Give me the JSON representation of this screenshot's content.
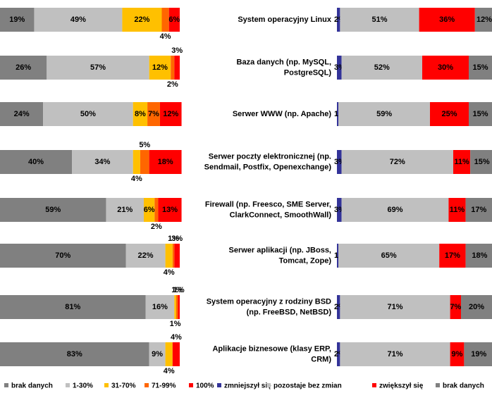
{
  "chart_data": [
    {
      "type": "stacked-bar",
      "series": [
        {
          "name": "brak danych",
          "color": "#808080",
          "values": [
            19,
            26,
            24,
            40,
            59,
            70,
            81,
            83
          ],
          "value_labels": [
            "19%",
            "26%",
            "24%",
            "40%",
            "59%",
            "70%",
            "81%",
            "83%"
          ]
        },
        {
          "name": "1-30%",
          "color": "#c0c0c0",
          "values": [
            49,
            57,
            50,
            34,
            21,
            22,
            16,
            9
          ],
          "value_labels": [
            "49%",
            "57%",
            "50%",
            "34%",
            "21%",
            "22%",
            "16%",
            "9%"
          ]
        },
        {
          "name": "31-70%",
          "color": "#ffc000",
          "values": [
            22,
            12,
            8,
            4,
            6,
            4,
            1,
            4
          ],
          "value_labels": [
            "22%",
            "12%",
            "8%",
            "4%",
            "6%",
            "4%",
            "1%",
            "4%"
          ]
        },
        {
          "name": "71-99%",
          "color": "#ff6600",
          "values": [
            4,
            2,
            7,
            5,
            2,
            1,
            1,
            null
          ],
          "value_labels": [
            "4%",
            "2%",
            "7%",
            "5%",
            "2%",
            "1%",
            "1%",
            null
          ]
        },
        {
          "name": "100%",
          "color": "#ff0000",
          "values": [
            6,
            3,
            12,
            18,
            13,
            3,
            1,
            4
          ],
          "value_labels": [
            "6%",
            "3%",
            "12%",
            "18%",
            "13%",
            "3%",
            "1%",
            "4%"
          ]
        }
      ]
    },
    {
      "type": "stacked-bar",
      "categories": [
        [
          "System operacyjny Linux"
        ],
        [
          "Baza danych (np. MySQL,",
          "PostgreSQL)"
        ],
        [
          "Serwer WWW (np. Apache)"
        ],
        [
          "Serwer poczty elektronicznej (np.",
          "Sendmail, Postfix, Openexchange)"
        ],
        [
          "Firewall (np. Freesco, SME Server,",
          "ClarkConnect, SmoothWall)"
        ],
        [
          "Serwer aplikacji (np. JBoss,",
          "Tomcat, Zope)"
        ],
        [
          "System operacyjny z rodziny BSD",
          "(np. FreeBSD, NetBSD)"
        ],
        [
          "Aplikacje biznesowe (klasy ERP,",
          "CRM)"
        ]
      ],
      "series": [
        {
          "name": "zmniejszył się",
          "color": "#333399",
          "values": [
            2,
            3,
            1,
            3,
            3,
            1,
            2,
            2
          ],
          "value_labels": [
            "2%",
            "3%",
            "1%",
            "3%",
            "3%",
            "1%",
            "2%",
            "2%"
          ]
        },
        {
          "name": "pozostaje bez zmian",
          "color": "#c0c0c0",
          "values": [
            51,
            52,
            59,
            72,
            69,
            65,
            71,
            71
          ],
          "value_labels": [
            "51%",
            "52%",
            "59%",
            "72%",
            "69%",
            "65%",
            "71%",
            "71%"
          ]
        },
        {
          "name": "zwiększył się",
          "color": "#ff0000",
          "values": [
            36,
            30,
            25,
            11,
            11,
            17,
            7,
            9
          ],
          "value_labels": [
            "36%",
            "30%",
            "25%",
            "11%",
            "11%",
            "17%",
            "7%",
            "9%"
          ]
        },
        {
          "name": "brak danych",
          "color": "#808080",
          "values": [
            12,
            15,
            15,
            15,
            17,
            18,
            20,
            19
          ],
          "value_labels": [
            "12%",
            "15%",
            "15%",
            "15%",
            "17%",
            "18%",
            "20%",
            "19%"
          ]
        }
      ]
    }
  ]
}
